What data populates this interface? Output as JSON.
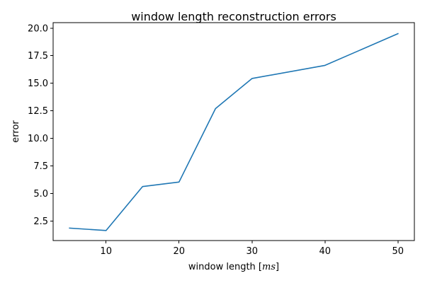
{
  "chart_data": {
    "type": "line",
    "title": "window length reconstruction errors",
    "xlabel": "window length [",
    "xlabel_math": "ms",
    "xlabel_suffix": "]",
    "ylabel": "error",
    "x": [
      5,
      10,
      15,
      20,
      25,
      30,
      40,
      50
    ],
    "series": [
      {
        "values": [
          1.85,
          1.63,
          5.62,
          6.03,
          12.7,
          15.43,
          16.62,
          19.5
        ],
        "color": "#1f77b4"
      }
    ],
    "xlim": [
      2.75,
      52.25
    ],
    "ylim": [
      0.72,
      20.5
    ],
    "xticks": [
      10,
      20,
      30,
      40,
      50
    ],
    "xtick_labels": [
      "10",
      "20",
      "30",
      "40",
      "50"
    ],
    "yticks": [
      2.5,
      5.0,
      7.5,
      10.0,
      12.5,
      15.0,
      17.5,
      20.0
    ],
    "ytick_labels": [
      "2.5",
      "5.0",
      "7.5",
      "10.0",
      "12.5",
      "15.0",
      "17.5",
      "20.0"
    ],
    "grid": false
  }
}
